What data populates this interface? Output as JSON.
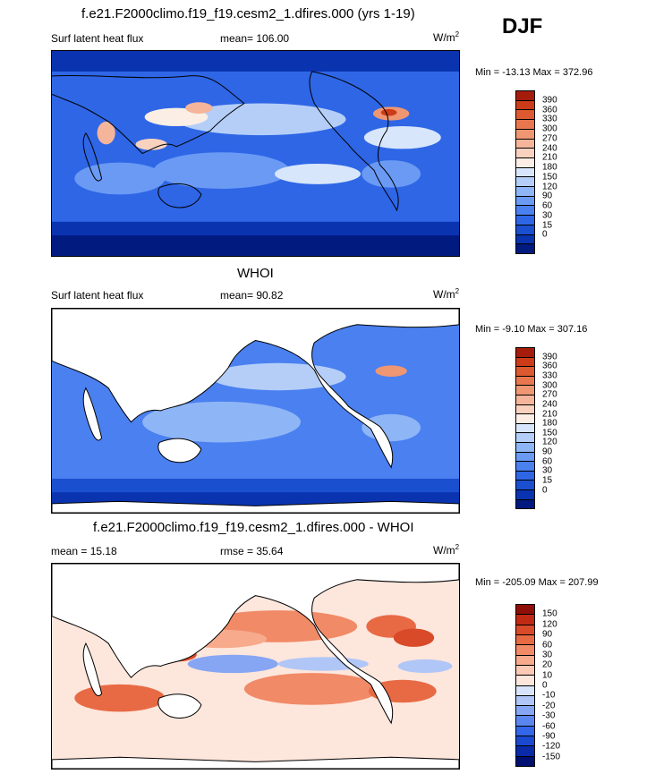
{
  "season": "DJF",
  "colors": {
    "abs_scale": [
      "#001a80",
      "#0a33b0",
      "#1a4fd0",
      "#2e66e6",
      "#4a80f0",
      "#6a9af4",
      "#8eb5f6",
      "#b4cef8",
      "#d8e6fb",
      "#fbeee4",
      "#f8d2be",
      "#f4b59a",
      "#ef9673",
      "#e8774f",
      "#dd5a30",
      "#cc3c18",
      "#a61c0c"
    ],
    "diff_scale": [
      "#001070",
      "#0a2aa8",
      "#1a48cf",
      "#3366e8",
      "#5c86ef",
      "#86a6f3",
      "#b0c6f7",
      "#d8e4fb",
      "#fde6dc",
      "#fbc9b4",
      "#f7aa8c",
      "#f18a66",
      "#e86a44",
      "#d94a28",
      "#c02a14",
      "#8e0f08"
    ],
    "land": "#ffffff",
    "coast": "#000000"
  },
  "chart_data": [
    {
      "type": "heatmap",
      "title": "f.e21.F2000climo.f19_f19.cesm2_1.dfires.000 (yrs 1-19)",
      "left_label": "Surf latent heat flux",
      "center_label": "mean= 106.00",
      "unit": "W/m",
      "unit_sup": "2",
      "minmax": "Min = -13.13 Max = 372.96",
      "min": -13.13,
      "max": 372.96,
      "mean": 106.0,
      "levels": [
        "390",
        "360",
        "330",
        "300",
        "270",
        "240",
        "210",
        "180",
        "150",
        "120",
        "90",
        "60",
        "30",
        "15",
        "0"
      ]
    },
    {
      "type": "heatmap",
      "title": "WHOI",
      "left_label": "Surf latent heat flux",
      "center_label": "mean=  90.82",
      "unit": "W/m",
      "unit_sup": "2",
      "minmax": "Min =  -9.10 Max = 307.16",
      "min": -9.1,
      "max": 307.16,
      "mean": 90.82,
      "levels": [
        "390",
        "360",
        "330",
        "300",
        "270",
        "240",
        "210",
        "180",
        "150",
        "120",
        "90",
        "60",
        "30",
        "15",
        "0"
      ]
    },
    {
      "type": "heatmap",
      "title": "f.e21.F2000climo.f19_f19.cesm2_1.dfires.000 - WHOI",
      "left_label": "mean =  15.18",
      "center_label": "rmse =  35.64",
      "unit": "W/m",
      "unit_sup": "2",
      "minmax": "Min = -205.09 Max = 207.99",
      "min": -205.09,
      "max": 207.99,
      "mean": 15.18,
      "rmse": 35.64,
      "levels": [
        "150",
        "120",
        "90",
        "60",
        "30",
        "20",
        "10",
        "0",
        "-10",
        "-20",
        "-30",
        "-60",
        "-90",
        "-120",
        "-150"
      ]
    }
  ]
}
